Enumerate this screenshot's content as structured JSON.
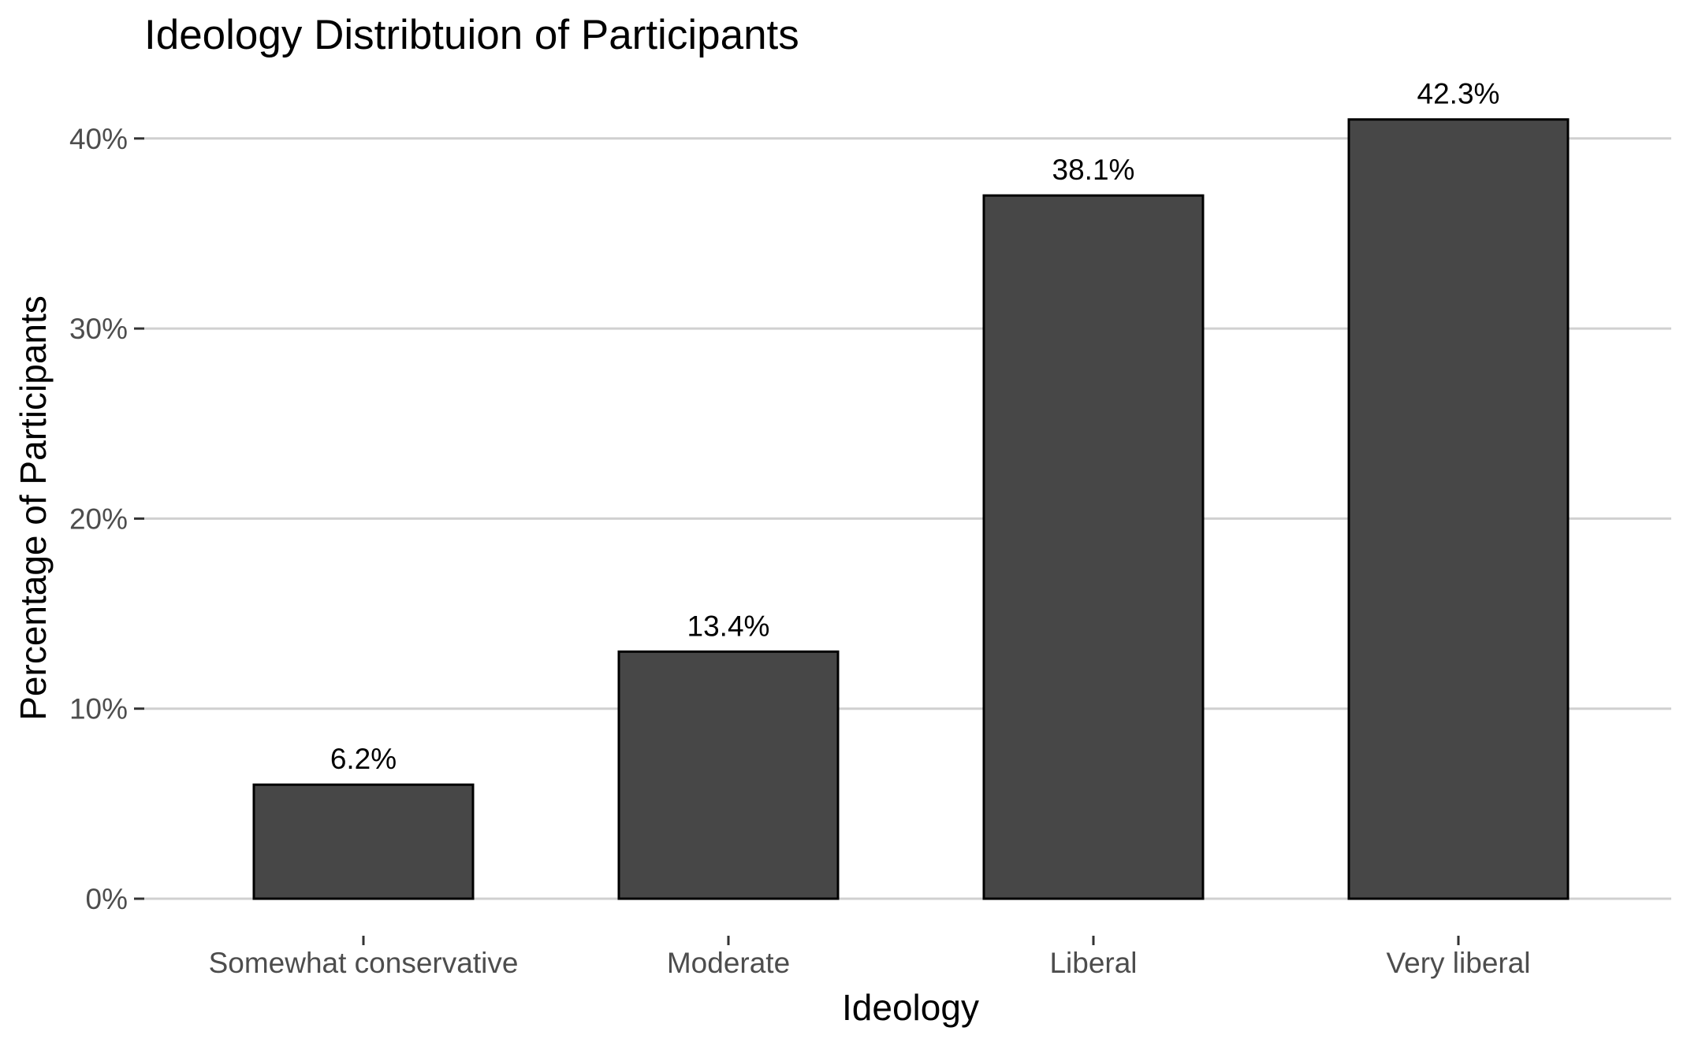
{
  "chart_data": {
    "type": "bar",
    "title": "Ideology Distribtuion of Participants",
    "xlabel": "Ideology",
    "ylabel": "Percentage of Participants",
    "categories": [
      "Somewhat conservative",
      "Moderate",
      "Liberal",
      "Very liberal"
    ],
    "values": [
      6.0,
      13.0,
      37.0,
      41.0
    ],
    "data_labels": [
      "6.2%",
      "13.4%",
      "38.1%",
      "42.3%"
    ],
    "ylim": [
      0,
      43
    ],
    "yticks": [
      0,
      10,
      20,
      30,
      40
    ],
    "ytick_labels": [
      "0%",
      "10%",
      "20%",
      "30%",
      "40%"
    ],
    "grid": "horizontal major gridlines",
    "legend": "none",
    "colors": {
      "bar_fill": "#474747",
      "bar_stroke": "#000000",
      "grid": "#d0d0d0",
      "tick_text": "#4d4d4d",
      "text": "#000000",
      "background": "#ffffff"
    }
  }
}
